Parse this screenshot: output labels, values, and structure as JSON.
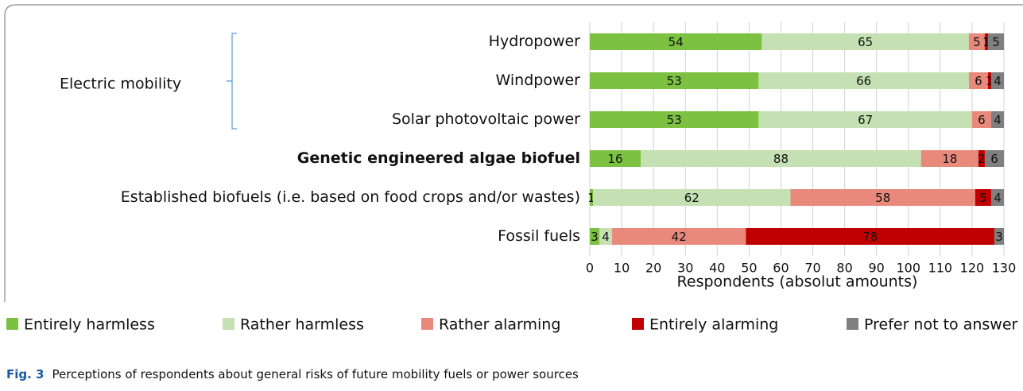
{
  "chart_data": {
    "type": "stacked_bar_horizontal",
    "categories": [
      "Hydropower",
      "Windpower",
      "Solar photovoltaic power",
      "Genetic engineered algae biofuel",
      "Established biofuels (i.e. based on food crops and/or wastes)",
      "Fossil fuels"
    ],
    "bold_categories": [
      3
    ],
    "series": [
      {
        "name": "Entirely harmless",
        "color": "#7cc142",
        "values": [
          54,
          53,
          53,
          16,
          1,
          3
        ]
      },
      {
        "name": "Rather harmless",
        "color": "#c5e0b3",
        "values": [
          65,
          66,
          67,
          88,
          62,
          4
        ]
      },
      {
        "name": "Rather alarming",
        "color": "#e8897b",
        "values": [
          5,
          6,
          6,
          18,
          58,
          42
        ]
      },
      {
        "name": "Entirely alarming",
        "color": "#c00000",
        "values": [
          1,
          1,
          null,
          2,
          5,
          78
        ]
      },
      {
        "name": "Prefer not to answer",
        "color": "#808080",
        "values": [
          5,
          4,
          4,
          6,
          4,
          3
        ]
      }
    ],
    "xlim": [
      0,
      130
    ],
    "xticks": [
      0,
      10,
      20,
      30,
      40,
      50,
      60,
      70,
      80,
      90,
      100,
      110,
      120,
      130
    ],
    "grid": true,
    "x_axis_label": "Respondents (absolut amounts)",
    "annotation": "Electric mobility",
    "legend": "bottom",
    "caption_label": "Fig. 3",
    "caption": "Perceptions of respondents about general risks of future mobility fuels or power sources"
  }
}
